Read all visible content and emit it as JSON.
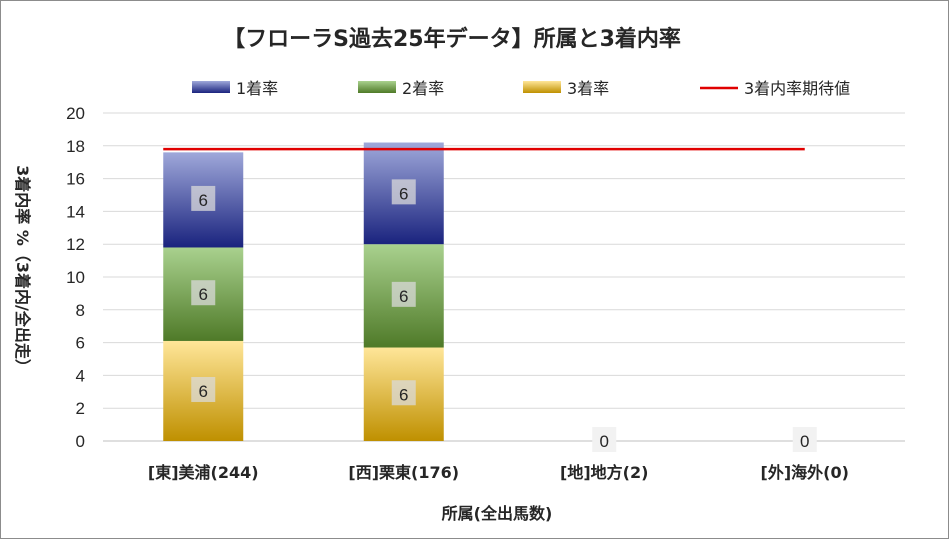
{
  "chart_data": {
    "type": "bar",
    "stacked": true,
    "title": "【フローラS過去25年データ】所属と3着内率",
    "xlabel": "所属(全出馬数)",
    "ylabel": "3着内率 %（3着内/全出走）",
    "ylim": [
      0,
      20
    ],
    "yticks": [
      0,
      2,
      4,
      6,
      8,
      10,
      12,
      14,
      16,
      18,
      20
    ],
    "grid": true,
    "legend_position": "top",
    "categories": [
      "[東]美浦(244)",
      "[西]栗東(176)",
      "[地]地方(2)",
      "[外]海外(0)"
    ],
    "series": [
      {
        "name": "3着率",
        "values": [
          6.1,
          5.7,
          0,
          0
        ],
        "labels": [
          "6",
          "6",
          "0",
          "0"
        ],
        "color_top": "#ffe699",
        "color_bottom": "#bf9000"
      },
      {
        "name": "2着率",
        "values": [
          5.7,
          6.3,
          0,
          0
        ],
        "labels": [
          "6",
          "6",
          "",
          ""
        ],
        "color_top": "#a9d18e",
        "color_bottom": "#4f7a28"
      },
      {
        "name": "1着率",
        "values": [
          5.8,
          6.2,
          0,
          0
        ],
        "labels": [
          "6",
          "6",
          "",
          ""
        ],
        "color_top": "#9fa8da",
        "color_bottom": "#1a237e"
      }
    ],
    "legend_order": [
      "1着率",
      "2着率",
      "3着率",
      "3着内率期待値"
    ],
    "expected_line": {
      "name": "3着内率期待値",
      "value": 17.8,
      "color": "#e00000"
    }
  }
}
